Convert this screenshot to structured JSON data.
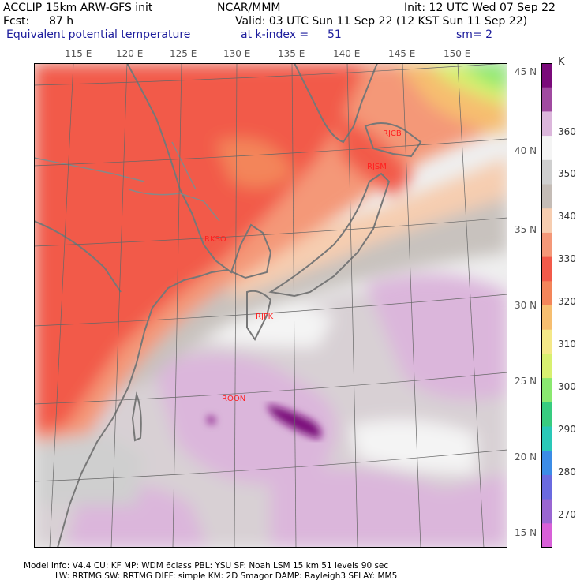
{
  "header": {
    "model": "ACCLIP 15km ARW-GFS init",
    "center": "NCAR/MMM",
    "init": "Init: 12 UTC Wed 07 Sep 22",
    "fcst_label": "Fcst:",
    "fcst_value": "87 h",
    "valid": "Valid: 03 UTC Sun 11 Sep 22 (12 KST Sun 11 Sep 22)",
    "field": "Equivalent potential temperature",
    "level_label": "at k-index =",
    "level_value": "51",
    "smooth": "sm= 2"
  },
  "lon_labels": [
    "115 E",
    "120 E",
    "125 E",
    "130 E",
    "135 E",
    "140 E",
    "145 E",
    "150 E"
  ],
  "lat_labels": [
    "45 N",
    "40 N",
    "35 N",
    "30 N",
    "25 N",
    "20 N",
    "15 N"
  ],
  "colorbar": {
    "unit": "K",
    "labels": [
      "360",
      "350",
      "340",
      "330",
      "320",
      "310",
      "300",
      "290",
      "280",
      "270"
    ],
    "colors": [
      "#7a0a7a",
      "#a04aa0",
      "#dbb6db",
      "#f4f4f4",
      "#cfcfcf",
      "#c4bcb6",
      "#f6cdb0",
      "#f49878",
      "#f25a4a",
      "#f3855a",
      "#f6be70",
      "#f4e888",
      "#d8f070",
      "#8ae870",
      "#38cc80",
      "#2ac8b8",
      "#3c8ce6",
      "#6a6ae0",
      "#9a66d2",
      "#d860d8"
    ]
  },
  "stations": [
    "RJCB",
    "RJSM",
    "RKSO",
    "RJFK",
    "ROON"
  ],
  "footer": {
    "line1": "Model Info: V4.4       CU: KF       MP: WDM 6class   PBL: YSU        SF: Noah LSM      15 km    51 levels    90 sec",
    "line2": "LW: RRTMG     SW: RRTMG    DIFF: simple KM: 2D Smagor DAMP: Rayleigh3   SFLAY: MM5"
  }
}
